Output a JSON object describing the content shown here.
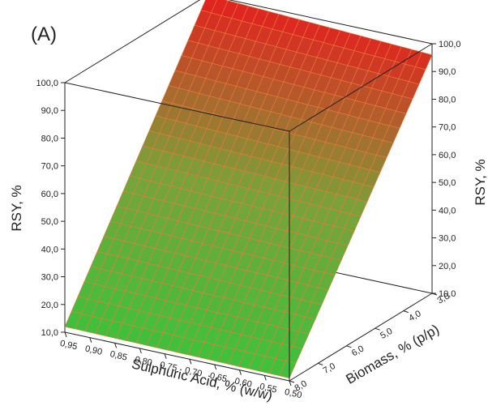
{
  "chart_data": {
    "type": "surface3d",
    "panel_label": "(A)",
    "z_label_left": "RSY, %",
    "z_label_right": "RSY, %",
    "x_label": "Sulphuric Acid, % (w/w)",
    "y_label": "Biomass, % (p/p)",
    "x_range": [
      0.5,
      0.95
    ],
    "y_range": [
      3.0,
      8.0
    ],
    "z_range": [
      10.0,
      100.0
    ],
    "x_ticks": [
      "0,95",
      "0,90",
      "0,85",
      "0,80",
      "0,75",
      "0,70",
      "0,65",
      "0,60",
      "0,55",
      "0,50"
    ],
    "x_tick_values": [
      0.95,
      0.9,
      0.85,
      0.8,
      0.75,
      0.7,
      0.65,
      0.6,
      0.55,
      0.5
    ],
    "y_ticks": [
      "3,0",
      "4,0",
      "5,0",
      "6,0",
      "7,0",
      "8,0"
    ],
    "y_tick_values": [
      3.0,
      4.0,
      5.0,
      6.0,
      7.0,
      8.0
    ],
    "z_ticks": [
      "10,0",
      "20,0",
      "30,0",
      "40,0",
      "50,0",
      "60,0",
      "70,0",
      "80,0",
      "90,0",
      "100,0"
    ],
    "z_tick_values": [
      10,
      20,
      30,
      40,
      50,
      60,
      70,
      80,
      90,
      100
    ],
    "surface_corners": [
      {
        "x": 0.95,
        "y": 8.0,
        "z": 12.0
      },
      {
        "x": 0.5,
        "y": 8.0,
        "z": 11.0
      },
      {
        "x": 0.5,
        "y": 3.0,
        "z": 96.0
      },
      {
        "x": 0.95,
        "y": 3.0,
        "z": 100.0
      }
    ],
    "colormap": [
      "#3cc23c",
      "#7aa23a",
      "#e41f1f"
    ],
    "grid_color": "#f07a3a"
  }
}
